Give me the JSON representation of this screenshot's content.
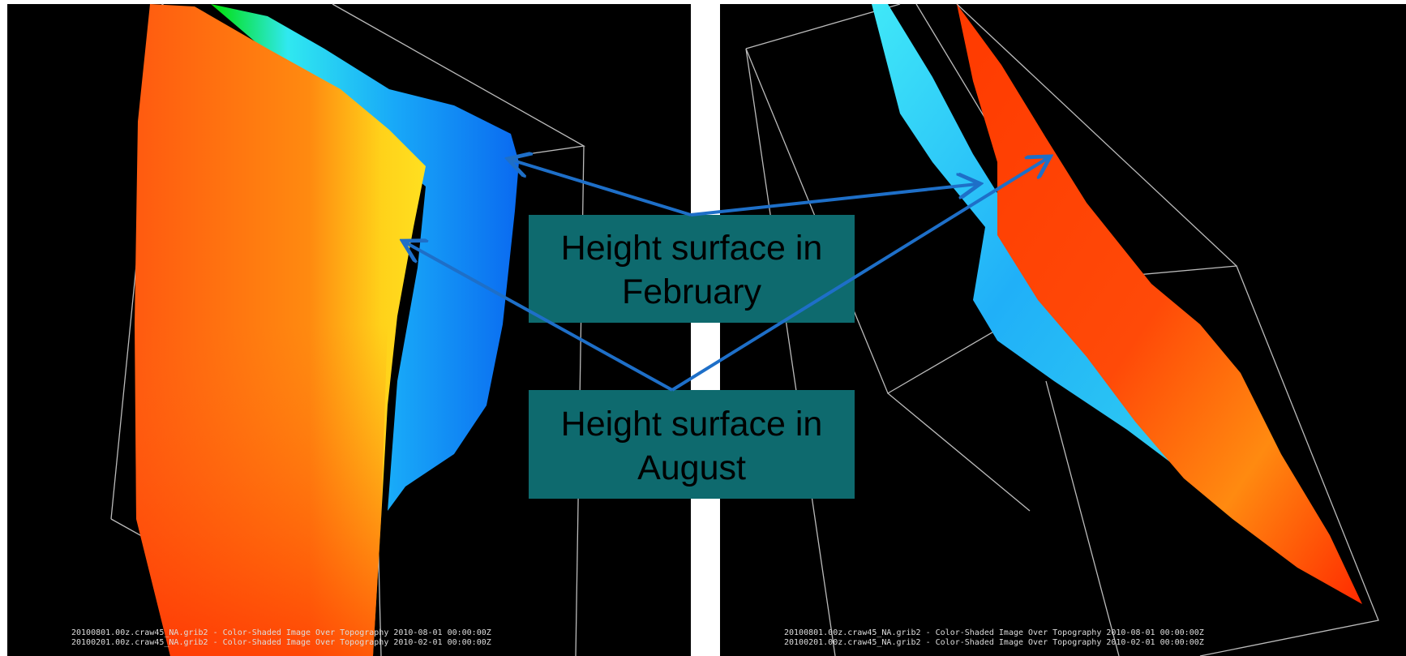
{
  "labels": [
    "Height surface in February",
    "Height surface in August"
  ],
  "panels": [
    {
      "captions": [
        "20100801.00z.craw45_NA.grib2 - Color-Shaded Image Over Topography 2010-08-01 00:00:00Z",
        "20100201.00z.craw45_NA.grib2 - Color-Shaded Image Over Topography 2010-02-01 00:00:00Z"
      ]
    },
    {
      "captions": [
        "20100801.00z.craw45_NA.grib2 - Color-Shaded Image Over Topography 2010-08-01 00:00:00Z",
        "20100201.00z.craw45_NA.grib2 - Color-Shaded Image Over Topography 2010-02-01 00:00:00Z"
      ]
    }
  ]
}
